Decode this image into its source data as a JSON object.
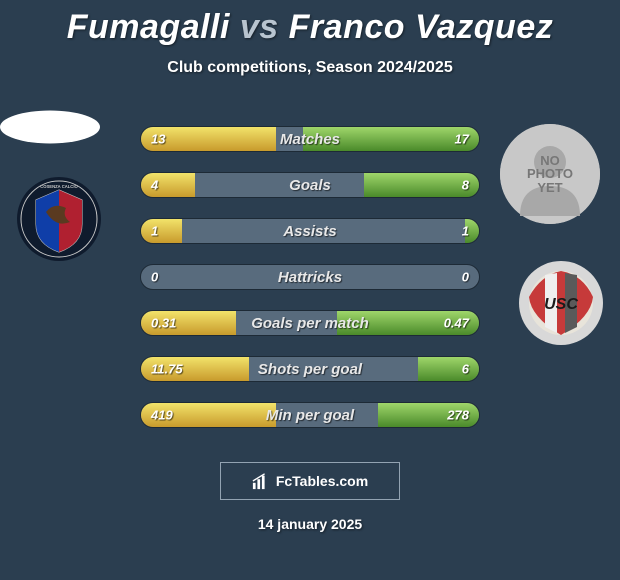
{
  "title_html": "Fumagalli <span style=\"color:#b8c4cf\">vs</span> Franco Vazquez",
  "subtitle": "Club competitions, Season 2024/2025",
  "date": "14 january 2025",
  "footer_text": "FcTables.com",
  "colors": {
    "bg": "#2b3e50",
    "row_bg": "#586b7d",
    "left_grad_top": "#f2e36a",
    "left_grad_bot": "#c89a2a",
    "right_grad_top": "#9fd66a",
    "right_grad_bot": "#4a8a2a"
  },
  "player_left": {
    "name": "Fumagalli",
    "crest": {
      "label": "COSENZA CALCIO",
      "bg_outer": "#0f1b2d",
      "stripe1": "#0f3ea8",
      "stripe2": "#b02030"
    }
  },
  "player_right": {
    "name": "Franco Vazquez",
    "no_photo_text": "NO PHOTO YET",
    "crest": {
      "label": "USC",
      "bg": "#d8d8d8",
      "stripe1": "#c63a3a",
      "stripe2": "#ffffff"
    }
  },
  "rows": [
    {
      "label": "Matches",
      "left": "13",
      "right": "17",
      "fill_left_pct": 40,
      "fill_right_pct": 52
    },
    {
      "label": "Goals",
      "left": "4",
      "right": "8",
      "fill_left_pct": 16,
      "fill_right_pct": 34
    },
    {
      "label": "Assists",
      "left": "1",
      "right": "1",
      "fill_left_pct": 12,
      "fill_right_pct": 4
    },
    {
      "label": "Hattricks",
      "left": "0",
      "right": "0",
      "fill_left_pct": 0,
      "fill_right_pct": 0
    },
    {
      "label": "Goals per match",
      "left": "0.31",
      "right": "0.47",
      "fill_left_pct": 28,
      "fill_right_pct": 42
    },
    {
      "label": "Shots per goal",
      "left": "11.75",
      "right": "6",
      "fill_left_pct": 32,
      "fill_right_pct": 18
    },
    {
      "label": "Min per goal",
      "left": "419",
      "right": "278",
      "fill_left_pct": 40,
      "fill_right_pct": 30
    }
  ]
}
